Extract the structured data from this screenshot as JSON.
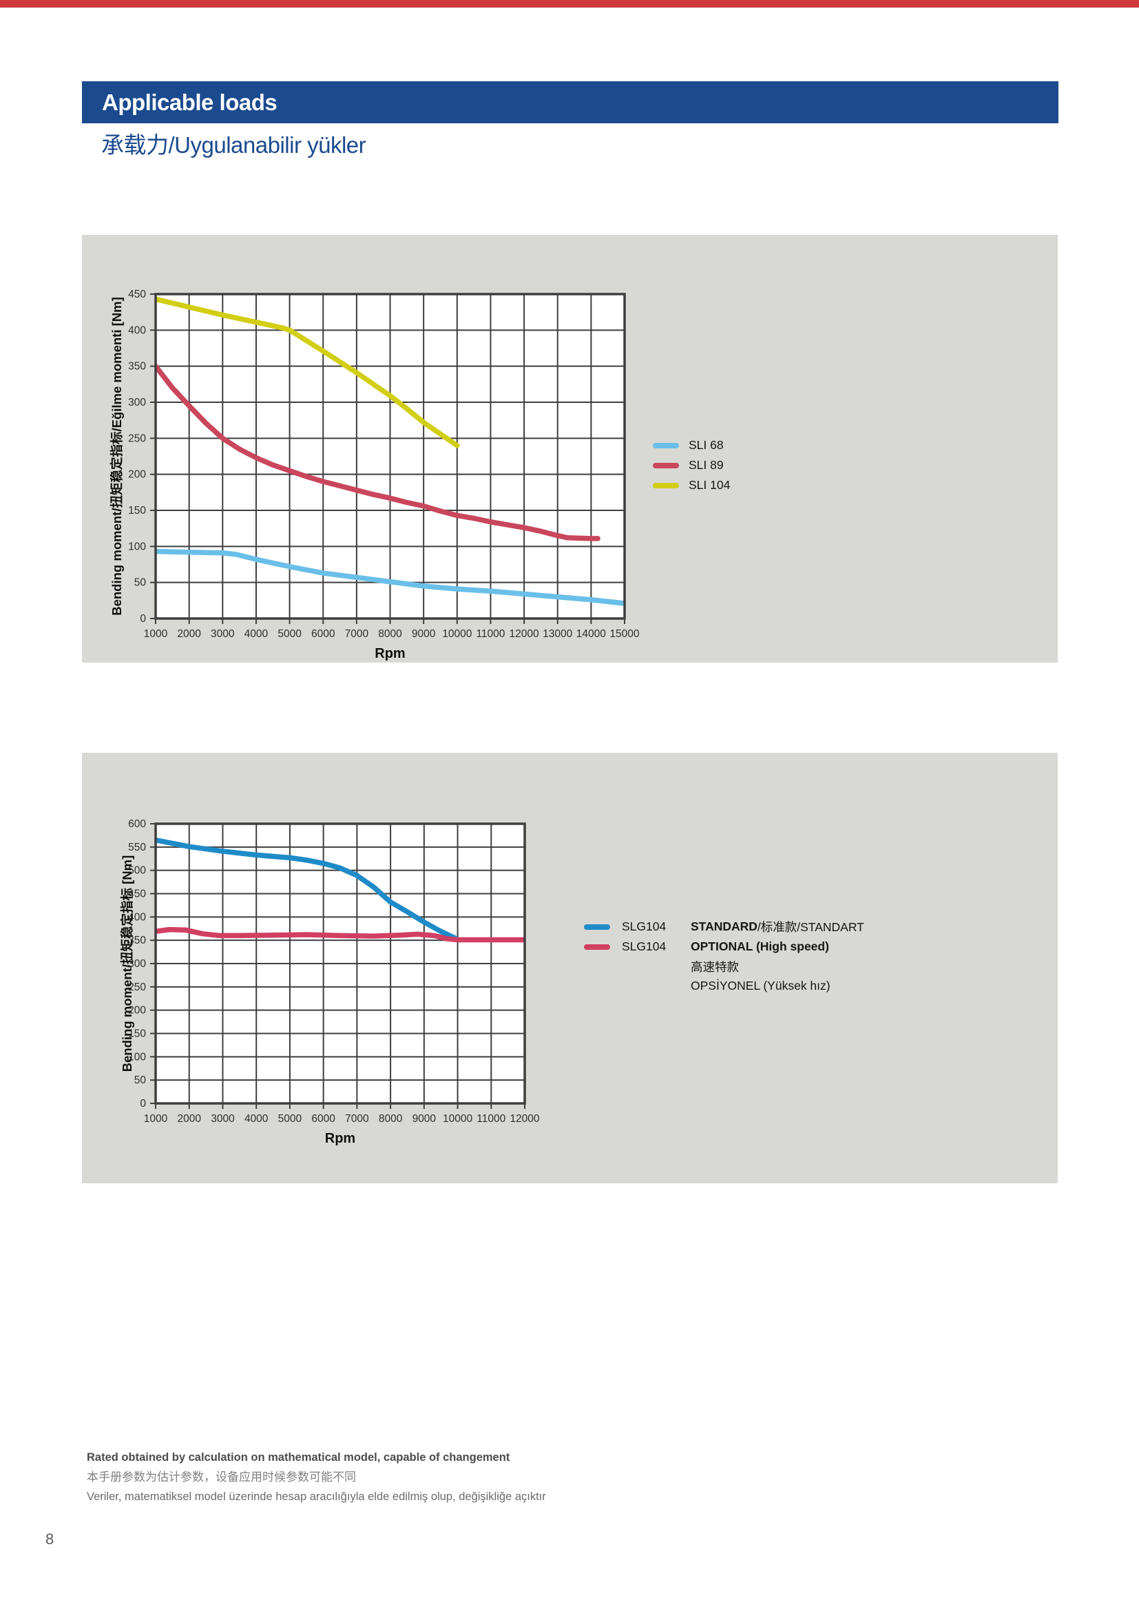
{
  "page": {
    "number": "8",
    "top_bar_color": "#d0393b"
  },
  "header": {
    "title": "Applicable loads",
    "subtitle": "承载力/Uygulanabilir yükler",
    "bar_color": "#1b4a8e"
  },
  "footer": {
    "line1": "Rated obtained by calculation on mathematical model, capable of changement",
    "line2": "本手册参数为估计参数，设备应用时候参数可能不同",
    "line3": "Veriler, matematiksel model üzerinde hesap aracılığıyla elde edilmiş olup, değişikliğe açıktır"
  },
  "chart_data": [
    {
      "type": "line",
      "xlabel": "Rpm",
      "ylabel": "Bending moment/扭矩稳定指标/Eğilme momenti [Nm]",
      "xlim": [
        1000,
        15000
      ],
      "ylim": [
        0,
        450
      ],
      "xtick_step": 1000,
      "ytick_step": 50,
      "grid": true,
      "legend_position": "right-middle",
      "series": [
        {
          "name": "SLI 68",
          "color": "#6abfe8",
          "points": [
            [
              1000,
              93
            ],
            [
              2000,
              92
            ],
            [
              3000,
              91
            ],
            [
              3400,
              89
            ],
            [
              4000,
              82
            ],
            [
              5000,
              72
            ],
            [
              6000,
              63
            ],
            [
              7000,
              57
            ],
            [
              8000,
              51
            ],
            [
              9000,
              45
            ],
            [
              10000,
              41
            ],
            [
              11000,
              38
            ],
            [
              12000,
              34
            ],
            [
              13000,
              30
            ],
            [
              14000,
              26
            ],
            [
              15000,
              21
            ]
          ]
        },
        {
          "name": "SLI 89",
          "color": "#c9465c",
          "points": [
            [
              1000,
              350
            ],
            [
              1500,
              320
            ],
            [
              2000,
              295
            ],
            [
              2500,
              271
            ],
            [
              3000,
              250
            ],
            [
              3500,
              235
            ],
            [
              4000,
              223
            ],
            [
              4500,
              213
            ],
            [
              5000,
              205
            ],
            [
              5500,
              197
            ],
            [
              6000,
              190
            ],
            [
              6500,
              184
            ],
            [
              7000,
              178
            ],
            [
              7500,
              172
            ],
            [
              8000,
              167
            ],
            [
              8500,
              161
            ],
            [
              9000,
              156
            ],
            [
              9500,
              149
            ],
            [
              10000,
              143
            ],
            [
              10500,
              139
            ],
            [
              11000,
              134
            ],
            [
              11500,
              130
            ],
            [
              12000,
              126
            ],
            [
              12500,
              121
            ],
            [
              13000,
              115
            ],
            [
              13300,
              112
            ],
            [
              14000,
              111
            ],
            [
              14200,
              111
            ]
          ]
        },
        {
          "name": "SLI 104",
          "color": "#d2ce14",
          "points": [
            [
              1000,
              443
            ],
            [
              2000,
              432
            ],
            [
              3000,
              421
            ],
            [
              4000,
              411
            ],
            [
              4800,
              403
            ],
            [
              5000,
              400
            ],
            [
              6000,
              371
            ],
            [
              7000,
              341
            ],
            [
              8000,
              309
            ],
            [
              8500,
              291
            ],
            [
              9000,
              272
            ],
            [
              9500,
              256
            ],
            [
              10000,
              240
            ]
          ]
        }
      ]
    },
    {
      "type": "line",
      "xlabel": "Rpm",
      "ylabel": "Bending moment/扭矩稳定指标 [Nm]",
      "xlim": [
        1000,
        12000
      ],
      "ylim": [
        0,
        600
      ],
      "xtick_step": 1000,
      "ytick_step": 50,
      "grid": true,
      "legend_position": "right-middle",
      "series": [
        {
          "name": "SLG104",
          "variant_bold": "STANDARD",
          "variant_rest": "/标准款/STANDART",
          "color": "#1e8bc8",
          "points": [
            [
              1000,
              565
            ],
            [
              1500,
              558
            ],
            [
              2000,
              551
            ],
            [
              2500,
              546
            ],
            [
              3000,
              541
            ],
            [
              3500,
              537
            ],
            [
              4000,
              533
            ],
            [
              4500,
              530
            ],
            [
              5000,
              527
            ],
            [
              5500,
              522
            ],
            [
              6000,
              515
            ],
            [
              6500,
              505
            ],
            [
              7000,
              489
            ],
            [
              7500,
              464
            ],
            [
              8000,
              432
            ],
            [
              8500,
              411
            ],
            [
              9000,
              389
            ],
            [
              9500,
              369
            ],
            [
              10000,
              352
            ]
          ]
        },
        {
          "name": "SLG104",
          "variant_bold": "OPTIONAL (High speed)",
          "variant_rest": "",
          "extra_lines": [
            "高速特款",
            "OPSİYONEL (Yüksek hız)"
          ],
          "color": "#d13f63",
          "points": [
            [
              1000,
              369
            ],
            [
              1400,
              373
            ],
            [
              1900,
              372
            ],
            [
              2400,
              364
            ],
            [
              2900,
              360
            ],
            [
              3500,
              360
            ],
            [
              4500,
              361
            ],
            [
              5500,
              362
            ],
            [
              6500,
              360
            ],
            [
              7500,
              359
            ],
            [
              8300,
              361
            ],
            [
              8800,
              363
            ],
            [
              9300,
              360
            ],
            [
              9700,
              353
            ],
            [
              10000,
              351
            ],
            [
              11000,
              351
            ],
            [
              12000,
              351
            ]
          ]
        }
      ]
    }
  ]
}
